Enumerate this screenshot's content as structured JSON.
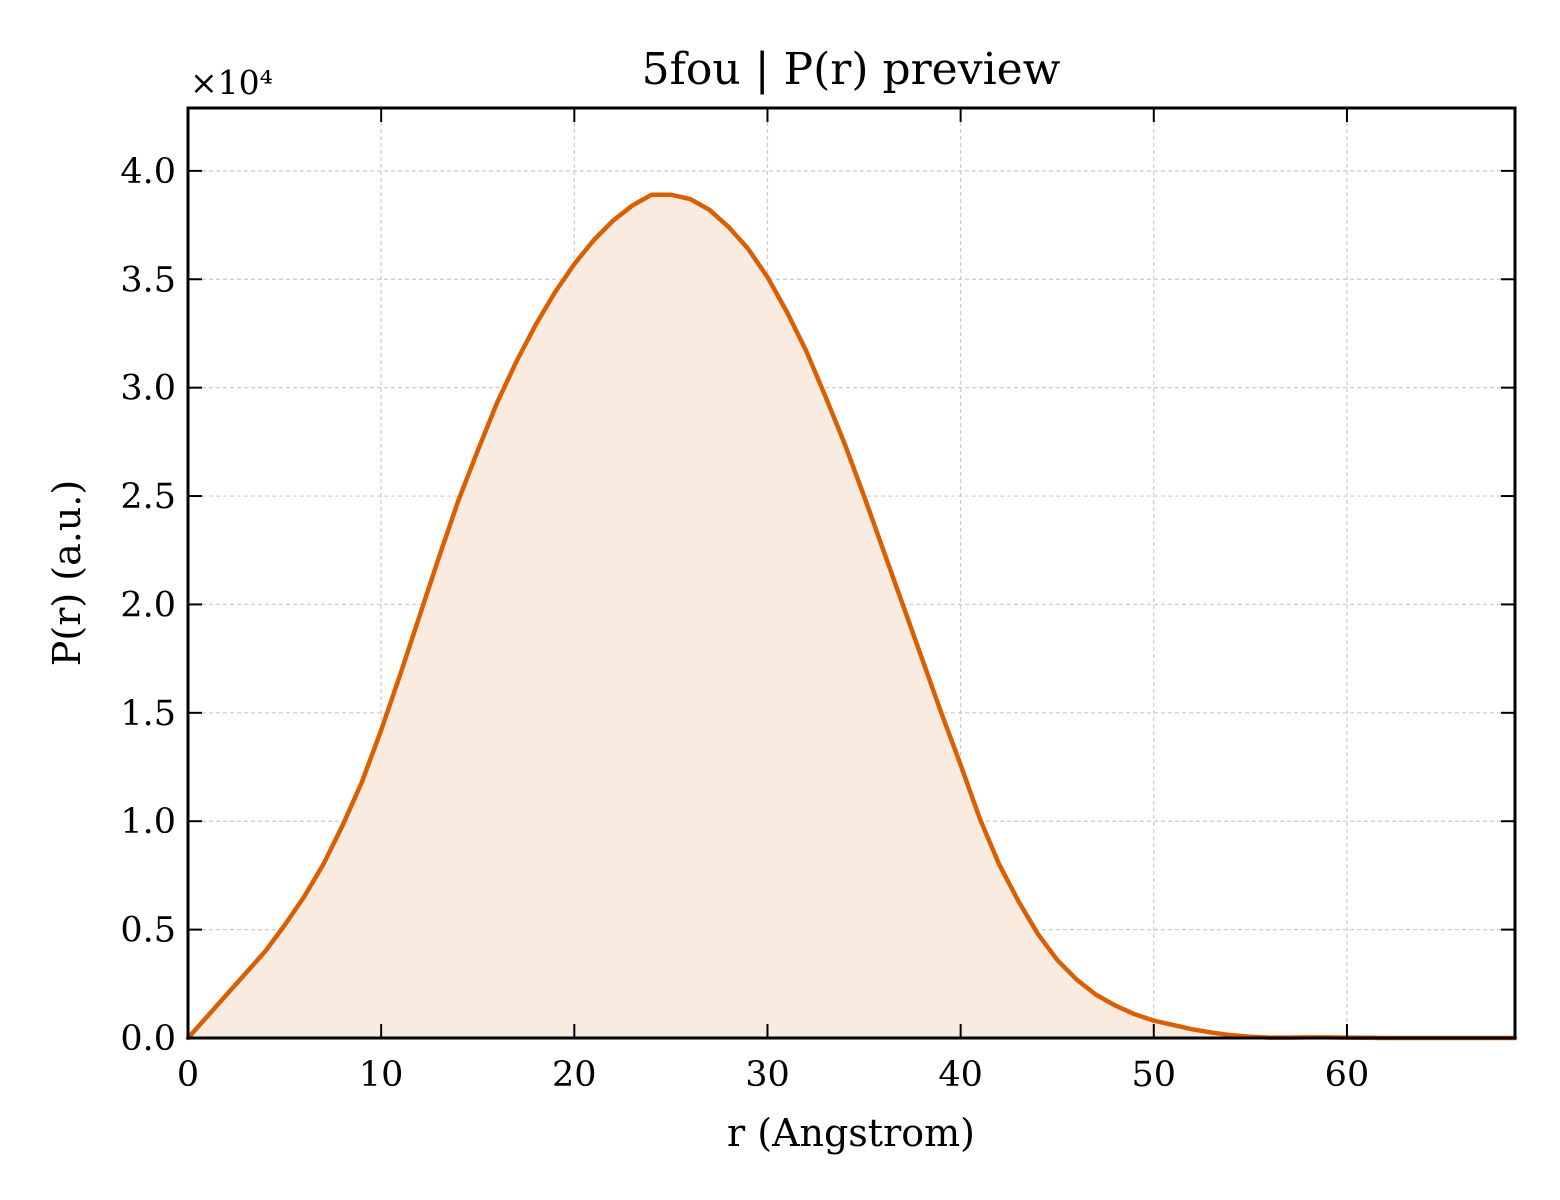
{
  "chart_data": {
    "type": "area",
    "title": "5fou | P(r) preview",
    "xlabel": "r (Angstrom)",
    "ylabel": "P(r) (a.u.)",
    "y_offset_label": "×10⁴",
    "y_scale": 10000,
    "xlim": [
      0,
      68.7
    ],
    "ylim": [
      0,
      42900
    ],
    "x_ticks": [
      0,
      10,
      20,
      30,
      40,
      50,
      60
    ],
    "x_tick_labels": [
      "0",
      "10",
      "20",
      "30",
      "40",
      "50",
      "60"
    ],
    "y_ticks": [
      0,
      5000,
      10000,
      15000,
      20000,
      25000,
      30000,
      35000,
      40000
    ],
    "y_tick_labels": [
      "0.0",
      "0.5",
      "1.0",
      "1.5",
      "2.0",
      "2.5",
      "3.0",
      "3.5",
      "4.0"
    ],
    "grid": true,
    "line_color": "#d95f02",
    "fill_color": "#f9ebe0",
    "series": [
      {
        "x": [
          0,
          1,
          2,
          3,
          4,
          5,
          6,
          7,
          8,
          9,
          10,
          11,
          12,
          13,
          14,
          15,
          16,
          17,
          18,
          19,
          20,
          21,
          22,
          23,
          24,
          25,
          26,
          27,
          28,
          29,
          30,
          31,
          32,
          33,
          34,
          35,
          36,
          37,
          38,
          39,
          40,
          41,
          42,
          43,
          44,
          45,
          46,
          47,
          48,
          49,
          50,
          51,
          52,
          53,
          54,
          55,
          56,
          57,
          58,
          59,
          60,
          61,
          62,
          63,
          64,
          65,
          66,
          67,
          68,
          68.7
        ],
        "y": [
          0,
          1000,
          2000,
          3000,
          4000,
          5200,
          6500,
          8000,
          9800,
          11800,
          14200,
          16800,
          19500,
          22200,
          24800,
          27100,
          29300,
          31200,
          32900,
          34400,
          35700,
          36800,
          37700,
          38400,
          38900,
          38900,
          38700,
          38200,
          37400,
          36400,
          35100,
          33500,
          31700,
          29600,
          27400,
          25000,
          22500,
          20000,
          17500,
          15000,
          12600,
          10100,
          8000,
          6300,
          4800,
          3600,
          2700,
          2000,
          1500,
          1100,
          800,
          600,
          400,
          250,
          130,
          60,
          20,
          20,
          30,
          30,
          20,
          10,
          0,
          0,
          0,
          0,
          0,
          0,
          0,
          0
        ]
      }
    ]
  }
}
